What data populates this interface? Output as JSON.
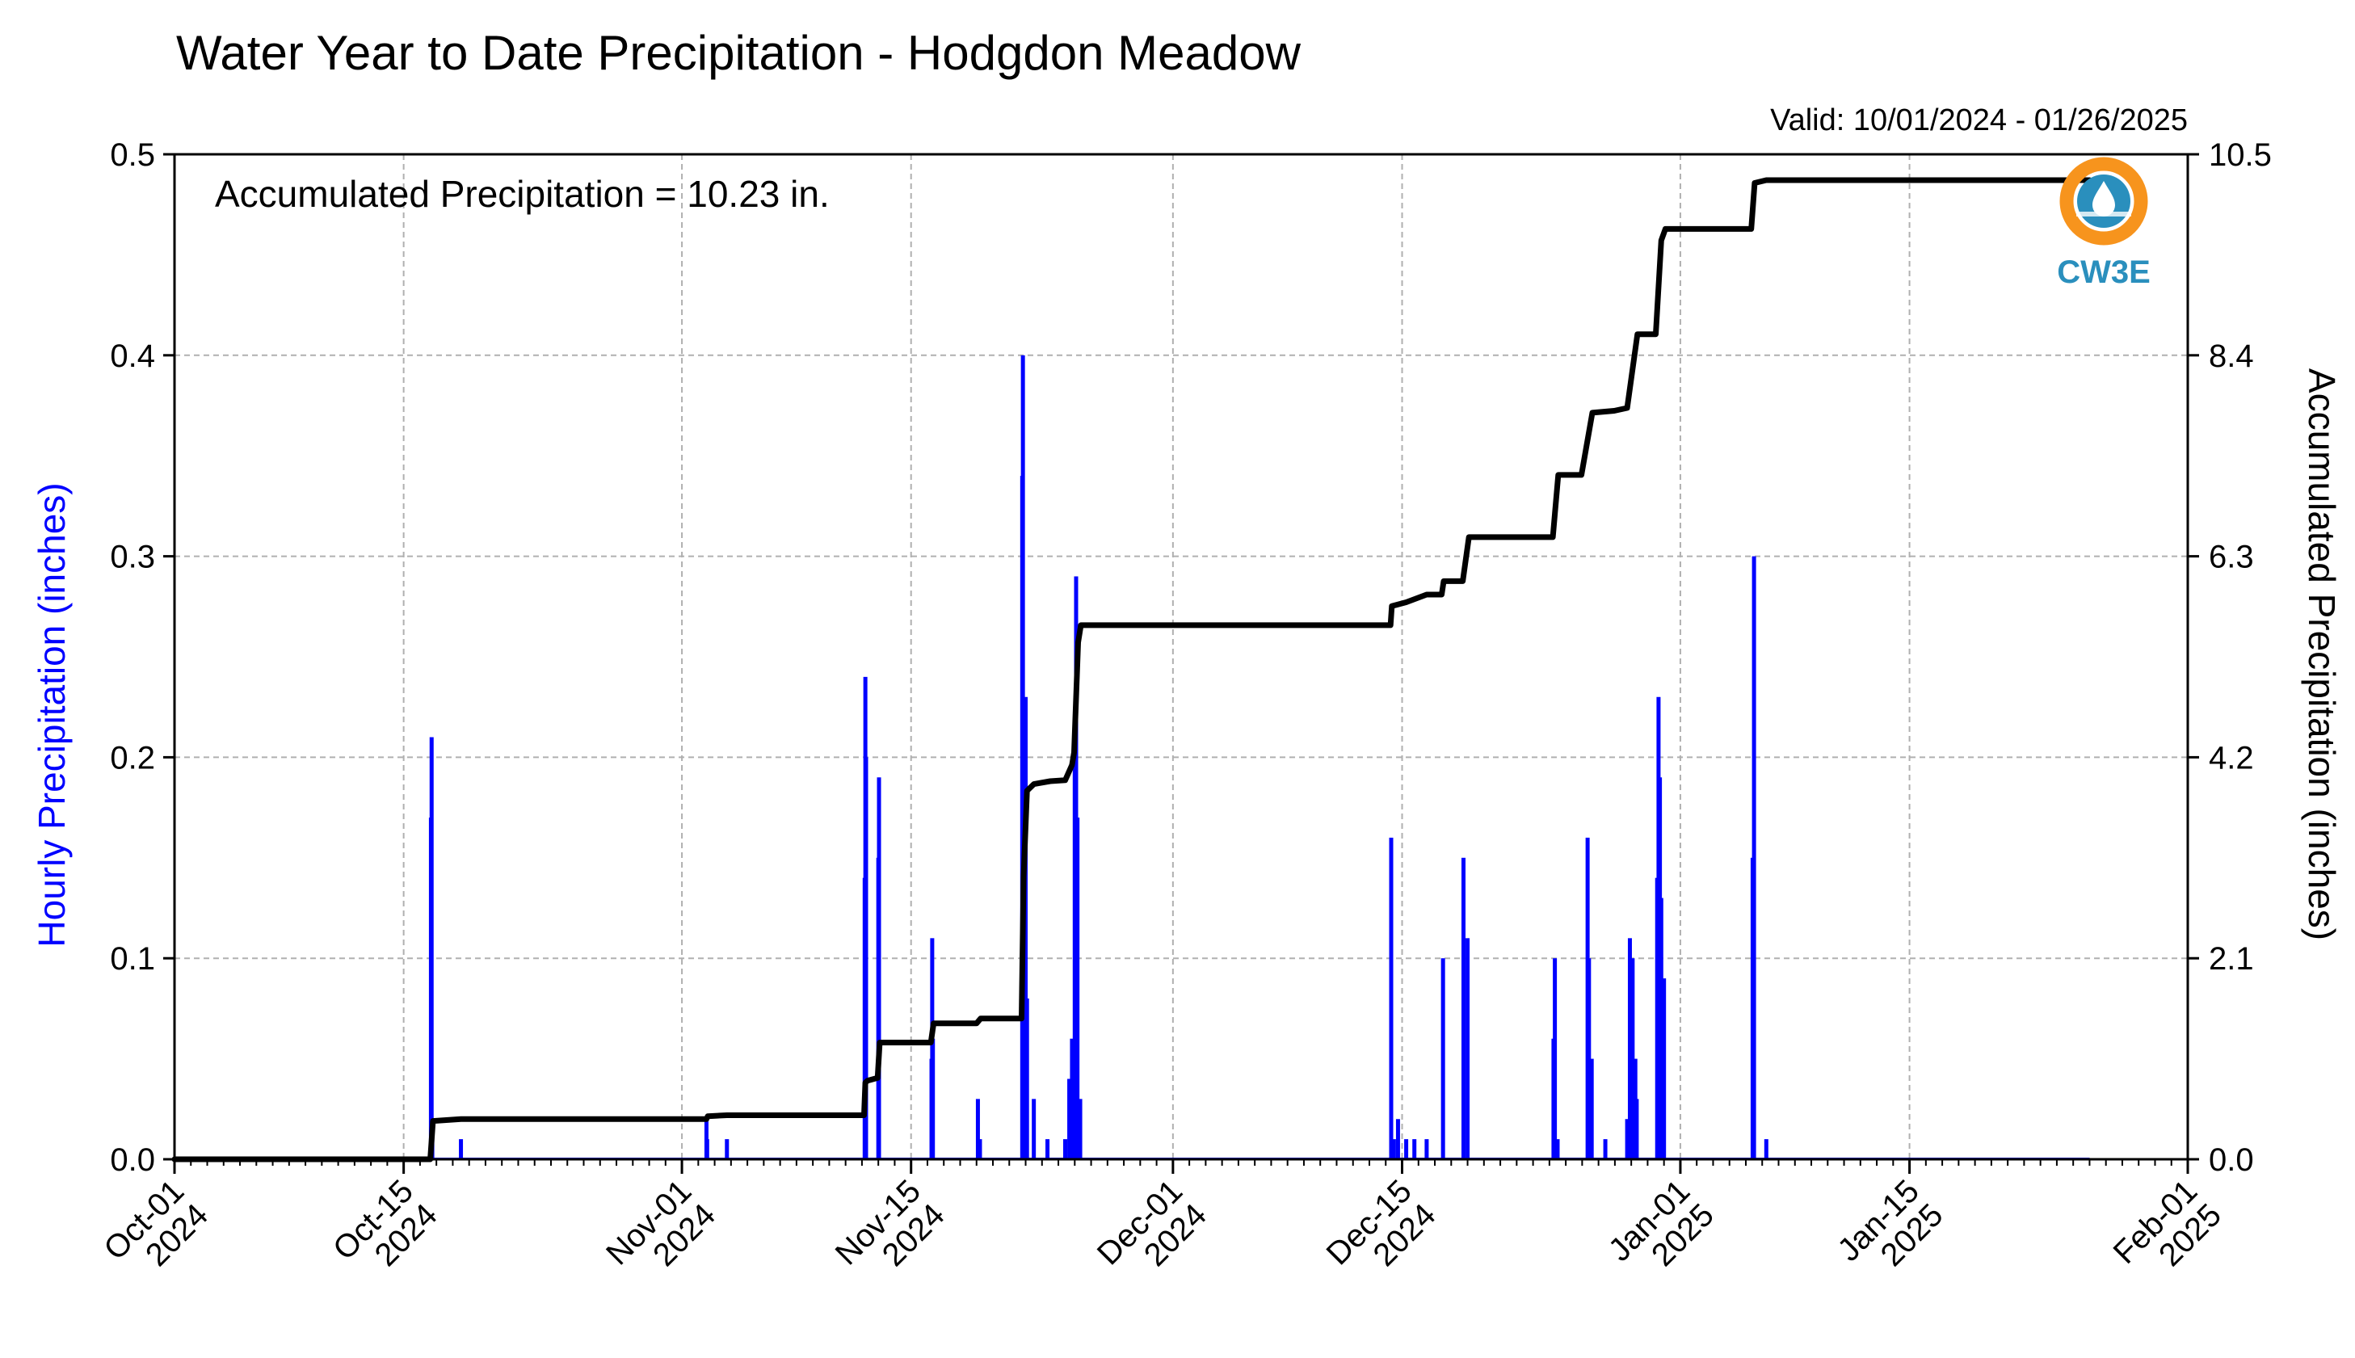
{
  "chart_data": {
    "type": "bar",
    "title": "Water Year to Date Precipitation - Hodgdon Meadow",
    "subtitle": "Valid: 10/01/2024 - 01/26/2025",
    "annotation": "Accumulated Precipitation = 10.23 in.",
    "logo_text": "CW3E",
    "ylabel_left": "Hourly Precipitation (inches)",
    "ylabel_right": "Accumulated Precipitation (inches)",
    "ylim_left": [
      0,
      0.5
    ],
    "ylim_right": [
      0,
      10.5
    ],
    "yticks_left": [
      "0.0",
      "0.1",
      "0.2",
      "0.3",
      "0.4",
      "0.5"
    ],
    "yticks_right": [
      "0.0",
      "2.1",
      "4.2",
      "6.3",
      "8.4",
      "10.5"
    ],
    "xlim": [
      "2024-10-01",
      "2025-02-01"
    ],
    "xticks": [
      {
        "date": "2024-10-01",
        "line1": "Oct-01",
        "line2": "2024"
      },
      {
        "date": "2024-10-15",
        "line1": "Oct-15",
        "line2": "2024"
      },
      {
        "date": "2024-11-01",
        "line1": "Nov-01",
        "line2": "2024"
      },
      {
        "date": "2024-11-15",
        "line1": "Nov-15",
        "line2": "2024"
      },
      {
        "date": "2024-12-01",
        "line1": "Dec-01",
        "line2": "2024"
      },
      {
        "date": "2024-12-15",
        "line1": "Dec-15",
        "line2": "2024"
      },
      {
        "date": "2025-01-01",
        "line1": "Jan-01",
        "line2": "2025"
      },
      {
        "date": "2025-01-15",
        "line1": "Jan-15",
        "line2": "2025"
      },
      {
        "date": "2025-02-01",
        "line1": "Feb-01",
        "line2": "2025"
      }
    ],
    "grid": true,
    "colors": {
      "hourly": "#0000ff",
      "accumulated": "#000000",
      "grid": "#b0b0b0",
      "logo_orange": "#f7941d",
      "logo_blue": "#2a8fbd"
    },
    "hourly_series": {
      "name": "Hourly Precipitation",
      "points": [
        [
          "2024-10-16T16:00",
          0.17
        ],
        [
          "2024-10-16T17:00",
          0.21
        ],
        [
          "2024-10-16T18:00",
          0.02
        ],
        [
          "2024-10-18T12:00",
          0.01
        ],
        [
          "2024-11-02T12:00",
          0.02
        ],
        [
          "2024-11-02T13:00",
          0.01
        ],
        [
          "2024-11-03T18:00",
          0.01
        ],
        [
          "2024-11-12T04:00",
          0.14
        ],
        [
          "2024-11-12T05:00",
          0.24
        ],
        [
          "2024-11-12T06:00",
          0.2
        ],
        [
          "2024-11-13T00:00",
          0.15
        ],
        [
          "2024-11-13T01:00",
          0.19
        ],
        [
          "2024-11-16T06:00",
          0.05
        ],
        [
          "2024-11-16T07:00",
          0.11
        ],
        [
          "2024-11-16T08:00",
          0.06
        ],
        [
          "2024-11-19T02:00",
          0.03
        ],
        [
          "2024-11-19T05:00",
          0.01
        ],
        [
          "2024-11-21T19:00",
          0.34
        ],
        [
          "2024-11-21T20:00",
          0.4
        ],
        [
          "2024-11-21T21:00",
          0.2
        ],
        [
          "2024-11-22T00:00",
          0.23
        ],
        [
          "2024-11-22T02:00",
          0.08
        ],
        [
          "2024-11-22T12:00",
          0.03
        ],
        [
          "2024-11-23T08:00",
          0.01
        ],
        [
          "2024-11-24T10:00",
          0.01
        ],
        [
          "2024-11-24T16:00",
          0.04
        ],
        [
          "2024-11-24T20:00",
          0.06
        ],
        [
          "2024-11-25T00:00",
          0.21
        ],
        [
          "2024-11-25T02:00",
          0.29
        ],
        [
          "2024-11-25T04:00",
          0.17
        ],
        [
          "2024-11-25T08:00",
          0.03
        ],
        [
          "2024-12-14T08:00",
          0.16
        ],
        [
          "2024-12-14T12:00",
          0.01
        ],
        [
          "2024-12-14T18:00",
          0.02
        ],
        [
          "2024-12-15T06:00",
          0.01
        ],
        [
          "2024-12-15T18:00",
          0.01
        ],
        [
          "2024-12-16T12:00",
          0.01
        ],
        [
          "2024-12-17T12:00",
          0.1
        ],
        [
          "2024-12-18T18:00",
          0.15
        ],
        [
          "2024-12-19T00:00",
          0.11
        ],
        [
          "2024-12-24T06:00",
          0.06
        ],
        [
          "2024-12-24T08:00",
          0.1
        ],
        [
          "2024-12-24T12:00",
          0.01
        ],
        [
          "2024-12-26T08:00",
          0.16
        ],
        [
          "2024-12-26T10:00",
          0.1
        ],
        [
          "2024-12-26T14:00",
          0.05
        ],
        [
          "2024-12-27T10:00",
          0.01
        ],
        [
          "2024-12-28T18:00",
          0.02
        ],
        [
          "2024-12-28T22:00",
          0.11
        ],
        [
          "2024-12-29T02:00",
          0.1
        ],
        [
          "2024-12-29T06:00",
          0.05
        ],
        [
          "2024-12-29T08:00",
          0.03
        ],
        [
          "2024-12-30T14:00",
          0.14
        ],
        [
          "2024-12-30T16:00",
          0.23
        ],
        [
          "2024-12-30T18:00",
          0.19
        ],
        [
          "2024-12-30T20:00",
          0.13
        ],
        [
          "2024-12-31T00:00",
          0.09
        ],
        [
          "2025-01-05T10:00",
          0.15
        ],
        [
          "2025-01-05T12:00",
          0.3
        ],
        [
          "2025-01-06T06:00",
          0.01
        ]
      ]
    },
    "accumulated_series": {
      "name": "Accumulated Precipitation",
      "points": [
        [
          "2024-10-01T00:00",
          0.0
        ],
        [
          "2024-10-16T15:00",
          0.0
        ],
        [
          "2024-10-16T19:00",
          0.4
        ],
        [
          "2024-10-18T12:00",
          0.42
        ],
        [
          "2024-11-02T12:00",
          0.42
        ],
        [
          "2024-11-02T14:00",
          0.45
        ],
        [
          "2024-11-03T18:00",
          0.46
        ],
        [
          "2024-11-12T03:00",
          0.46
        ],
        [
          "2024-11-12T05:00",
          0.8
        ],
        [
          "2024-11-12T08:00",
          0.82
        ],
        [
          "2024-11-12T23:00",
          0.85
        ],
        [
          "2024-11-13T02:00",
          1.22
        ],
        [
          "2024-11-16T05:00",
          1.22
        ],
        [
          "2024-11-16T09:00",
          1.42
        ],
        [
          "2024-11-19T00:00",
          1.42
        ],
        [
          "2024-11-19T06:00",
          1.47
        ],
        [
          "2024-11-21T18:00",
          1.47
        ],
        [
          "2024-11-21T21:00",
          2.95
        ],
        [
          "2024-11-22T02:00",
          3.85
        ],
        [
          "2024-11-22T12:00",
          3.92
        ],
        [
          "2024-11-23T12:00",
          3.95
        ],
        [
          "2024-11-24T10:00",
          3.96
        ],
        [
          "2024-11-24T20:00",
          4.12
        ],
        [
          "2024-11-24T23:00",
          4.25
        ],
        [
          "2024-11-25T05:00",
          5.4
        ],
        [
          "2024-11-25T09:00",
          5.58
        ],
        [
          "2024-12-14T07:00",
          5.58
        ],
        [
          "2024-12-14T09:00",
          5.78
        ],
        [
          "2024-12-15T06:00",
          5.82
        ],
        [
          "2024-12-16T12:00",
          5.9
        ],
        [
          "2024-12-17T10:00",
          5.9
        ],
        [
          "2024-12-17T13:00",
          6.04
        ],
        [
          "2024-12-18T17:00",
          6.04
        ],
        [
          "2024-12-19T02:00",
          6.5
        ],
        [
          "2024-12-24T05:00",
          6.5
        ],
        [
          "2024-12-24T13:00",
          7.15
        ],
        [
          "2024-12-25T23:00",
          7.15
        ],
        [
          "2024-12-26T15:00",
          7.8
        ],
        [
          "2024-12-27T23:00",
          7.82
        ],
        [
          "2024-12-28T18:00",
          7.85
        ],
        [
          "2024-12-29T09:00",
          8.62
        ],
        [
          "2024-12-30T12:00",
          8.62
        ],
        [
          "2024-12-30T20:00",
          9.6
        ],
        [
          "2024-12-31T02:00",
          9.72
        ],
        [
          "2025-01-05T08:00",
          9.72
        ],
        [
          "2025-01-05T13:00",
          10.2
        ],
        [
          "2025-01-06T06:00",
          10.23
        ],
        [
          "2025-01-26T00:00",
          10.23
        ]
      ]
    }
  }
}
